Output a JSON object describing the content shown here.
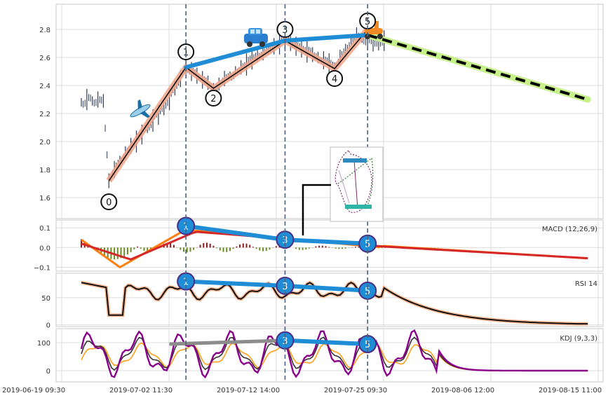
{
  "chart_data": {
    "type": "stock-technical",
    "x_tick_labels": [
      "2019-06-19 09:30",
      "2019-07-02 11:30",
      "2019-07-12 14:00",
      "2019-07-25 09:30",
      "2019-08-06 12:00",
      "2019-08-15 11:00"
    ],
    "price_panel": {
      "ylim": [
        1.45,
        2.98
      ],
      "yticks": [
        "1.6",
        "1.8",
        "2.0",
        "2.2",
        "2.4",
        "2.6",
        "2.8"
      ],
      "series_close": [
        [
          0,
          2.28
        ],
        [
          1,
          2.3
        ],
        [
          2,
          2.29
        ],
        [
          3,
          2.3
        ],
        [
          4,
          2.29
        ],
        [
          5,
          1.72
        ],
        [
          6,
          1.8
        ],
        [
          7,
          1.86
        ],
        [
          8,
          1.92
        ],
        [
          9,
          1.97
        ],
        [
          10,
          2.0
        ],
        [
          11,
          2.05
        ],
        [
          12,
          2.1
        ],
        [
          13,
          2.15
        ],
        [
          14,
          2.19
        ],
        [
          15,
          2.24
        ],
        [
          16,
          2.3
        ],
        [
          17,
          2.38
        ],
        [
          18,
          2.45
        ],
        [
          19,
          2.53
        ],
        [
          20,
          2.5
        ],
        [
          21,
          2.47
        ],
        [
          22,
          2.44
        ],
        [
          23,
          2.42
        ],
        [
          24,
          2.38
        ],
        [
          25,
          2.41
        ],
        [
          26,
          2.45
        ],
        [
          27,
          2.47
        ],
        [
          28,
          2.5
        ],
        [
          29,
          2.53
        ],
        [
          30,
          2.55
        ],
        [
          31,
          2.58
        ],
        [
          32,
          2.61
        ],
        [
          33,
          2.63
        ],
        [
          34,
          2.66
        ],
        [
          35,
          2.68
        ],
        [
          36,
          2.7
        ],
        [
          37,
          2.72
        ],
        [
          38,
          2.7
        ],
        [
          39,
          2.68
        ],
        [
          40,
          2.66
        ],
        [
          41,
          2.64
        ],
        [
          42,
          2.62
        ],
        [
          43,
          2.6
        ],
        [
          44,
          2.58
        ],
        [
          45,
          2.56
        ],
        [
          46,
          2.52
        ],
        [
          47,
          2.6
        ],
        [
          48,
          2.66
        ],
        [
          49,
          2.72
        ],
        [
          50,
          2.77
        ],
        [
          51,
          2.74
        ],
        [
          52,
          2.72
        ],
        [
          53,
          2.7
        ],
        [
          54,
          2.7
        ],
        [
          55,
          2.72
        ]
      ],
      "waypoint_labels": [
        "0",
        "1",
        "2",
        "3",
        "4",
        "5"
      ],
      "waypoints": [
        [
          5,
          1.72
        ],
        [
          19,
          2.53
        ],
        [
          24,
          2.38
        ],
        [
          37,
          2.72
        ],
        [
          46,
          2.52
        ],
        [
          52,
          2.8
        ]
      ],
      "trend_line": [
        [
          19,
          2.53
        ],
        [
          37,
          2.72
        ],
        [
          52,
          2.76
        ]
      ],
      "forecast": [
        [
          52,
          2.76
        ],
        [
          92,
          2.3
        ]
      ],
      "icons": [
        "airplane-icon",
        "car-icon",
        "scooter-icon"
      ]
    },
    "macd_panel": {
      "title": "MACD (12,26,9)",
      "ylim": [
        -0.12,
        0.14
      ],
      "yticks": [
        "−0.1",
        "0.0",
        "0.1"
      ],
      "markers": [
        "1",
        "3",
        "5"
      ],
      "marker_points": [
        [
          19,
          0.11
        ],
        [
          37,
          0.04
        ],
        [
          52,
          0.02
        ]
      ]
    },
    "rsi_panel": {
      "title": "RSI 14",
      "ylim": [
        -3,
        95
      ],
      "yticks": [
        "0",
        "50"
      ],
      "markers": [
        "1",
        "3",
        "5"
      ],
      "marker_points": [
        [
          19,
          80
        ],
        [
          37,
          72
        ],
        [
          52,
          63
        ]
      ]
    },
    "kdj_panel": {
      "title": "KDJ (9,3,3)",
      "ylim": [
        -40,
        150
      ],
      "yticks": [
        "0",
        "100"
      ],
      "markers": [
        "3",
        "5"
      ],
      "marker_points": [
        [
          37,
          108
        ],
        [
          52,
          95
        ]
      ]
    }
  }
}
